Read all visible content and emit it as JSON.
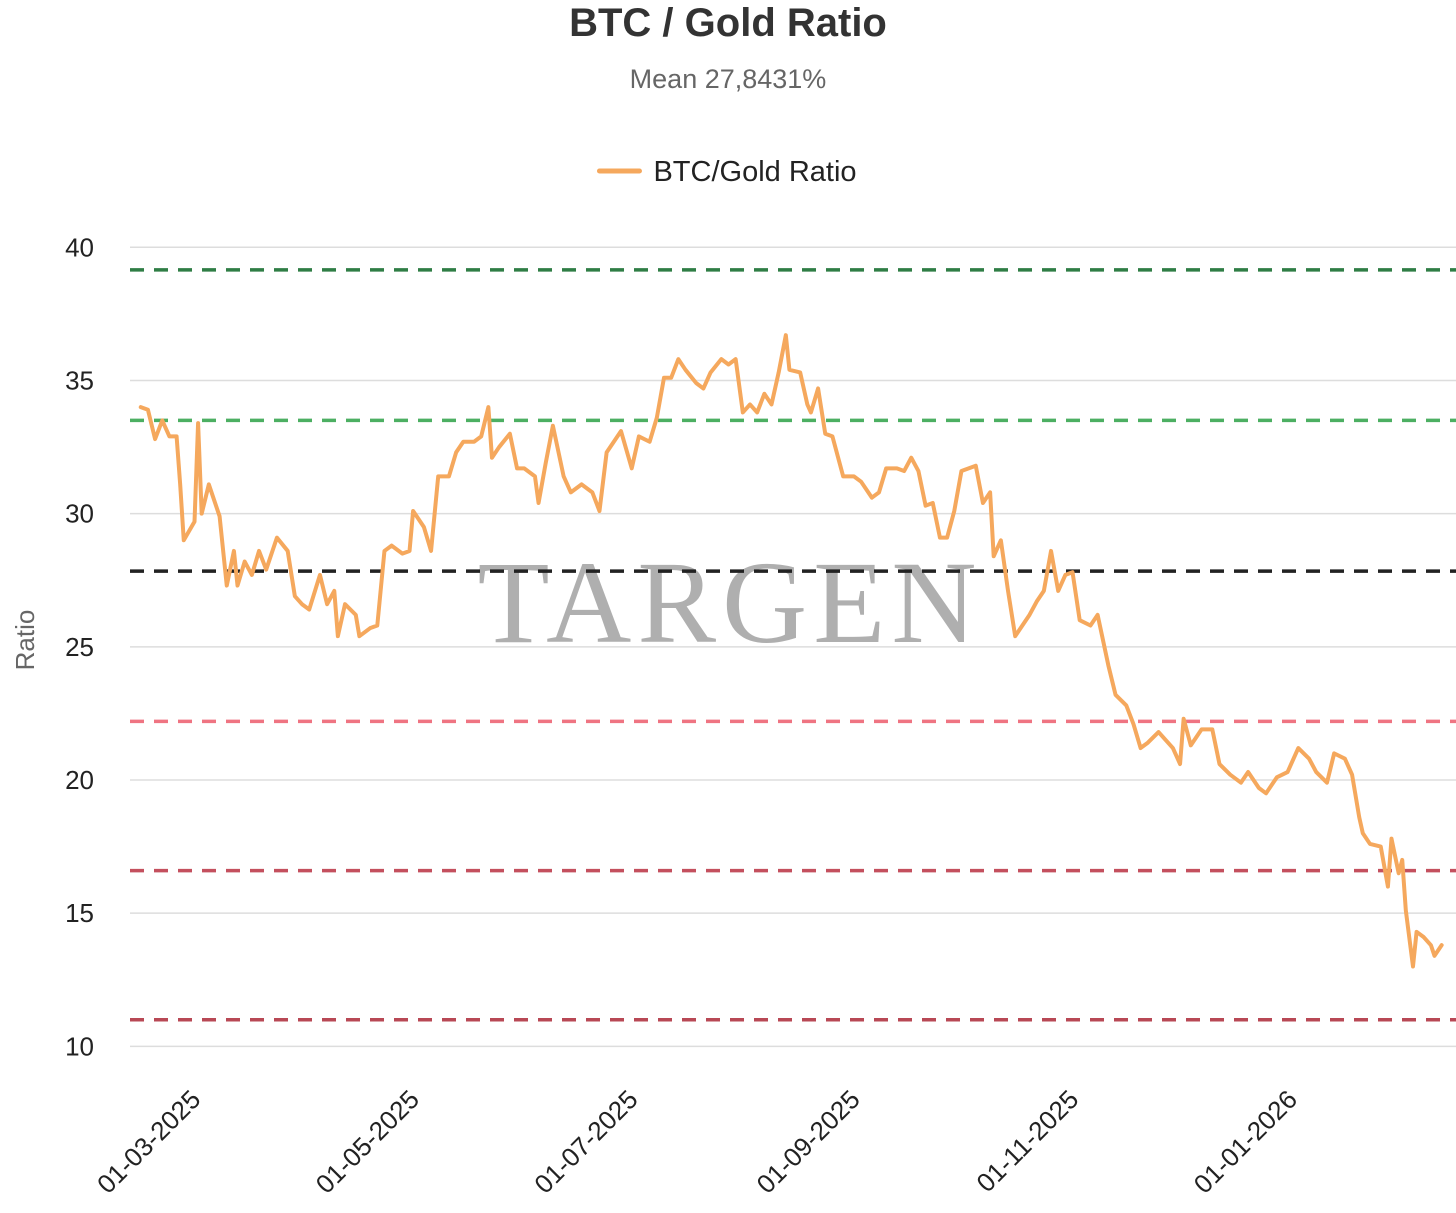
{
  "chart_data": {
    "type": "line",
    "title": "BTC / Gold Ratio",
    "subtitle": "Mean 27,8431%",
    "ylabel": "Ratio",
    "watermark": "TARGEN",
    "legend": "top",
    "grid": true,
    "xlim": [
      "2025-02-10",
      "2026-02-15"
    ],
    "xticks": [
      {
        "value": "2025-03-01",
        "label": "01-03-2025"
      },
      {
        "value": "2025-05-01",
        "label": "01-05-2025"
      },
      {
        "value": "2025-07-01",
        "label": "01-07-2025"
      },
      {
        "value": "2025-09-01",
        "label": "01-09-2025"
      },
      {
        "value": "2025-11-01",
        "label": "01-11-2025"
      },
      {
        "value": "2026-01-01",
        "label": "01-01-2026"
      }
    ],
    "ylim": [
      9,
      41.4
    ],
    "yticks": [
      10,
      15,
      20,
      25,
      30,
      35,
      40
    ],
    "reference_lines": [
      {
        "value": 39.15,
        "color": "#2f7d45"
      },
      {
        "value": 33.5,
        "color": "#4caf62"
      },
      {
        "value": 27.8431,
        "color": "#222222"
      },
      {
        "value": 22.2,
        "color": "#ef7482"
      },
      {
        "value": 16.6,
        "color": "#c4505e"
      },
      {
        "value": 11.0,
        "color": "#b84855"
      }
    ],
    "x": [
      "2025-02-13",
      "2025-02-15",
      "2025-02-17",
      "2025-02-19",
      "2025-02-21",
      "2025-02-23",
      "2025-02-24",
      "2025-02-25",
      "2025-02-28",
      "2025-03-01",
      "2025-03-02",
      "2025-03-04",
      "2025-03-07",
      "2025-03-09",
      "2025-03-11",
      "2025-03-12",
      "2025-03-14",
      "2025-03-16",
      "2025-03-18",
      "2025-03-20",
      "2025-03-23",
      "2025-03-26",
      "2025-03-28",
      "2025-03-30",
      "2025-04-01",
      "2025-04-04",
      "2025-04-06",
      "2025-04-08",
      "2025-04-09",
      "2025-04-11",
      "2025-04-14",
      "2025-04-15",
      "2025-04-18",
      "2025-04-20",
      "2025-04-22",
      "2025-04-24",
      "2025-04-27",
      "2025-04-29",
      "2025-04-30",
      "2025-05-03",
      "2025-05-05",
      "2025-05-07",
      "2025-05-10",
      "2025-05-12",
      "2025-05-14",
      "2025-05-17",
      "2025-05-19",
      "2025-05-21",
      "2025-05-22",
      "2025-05-24",
      "2025-05-27",
      "2025-05-29",
      "2025-05-31",
      "2025-06-03",
      "2025-06-04",
      "2025-06-06",
      "2025-06-08",
      "2025-06-11",
      "2025-06-13",
      "2025-06-16",
      "2025-06-19",
      "2025-06-21",
      "2025-06-23",
      "2025-06-25",
      "2025-06-27",
      "2025-06-30",
      "2025-07-02",
      "2025-07-05",
      "2025-07-07",
      "2025-07-09",
      "2025-07-11",
      "2025-07-13",
      "2025-07-15",
      "2025-07-18",
      "2025-07-20",
      "2025-07-22",
      "2025-07-25",
      "2025-07-27",
      "2025-07-29",
      "2025-07-31",
      "2025-08-02",
      "2025-08-04",
      "2025-08-06",
      "2025-08-08",
      "2025-08-10",
      "2025-08-12",
      "2025-08-13",
      "2025-08-16",
      "2025-08-18",
      "2025-08-19",
      "2025-08-21",
      "2025-08-23",
      "2025-08-25",
      "2025-08-28",
      "2025-08-31",
      "2025-09-02",
      "2025-09-05",
      "2025-09-07",
      "2025-09-09",
      "2025-09-12",
      "2025-09-14",
      "2025-09-16",
      "2025-09-18",
      "2025-09-20",
      "2025-09-22",
      "2025-09-24",
      "2025-09-26",
      "2025-09-28",
      "2025-09-30",
      "2025-10-02",
      "2025-10-04",
      "2025-10-06",
      "2025-10-08",
      "2025-10-09",
      "2025-10-11",
      "2025-10-13",
      "2025-10-15",
      "2025-10-17",
      "2025-10-19",
      "2025-10-21",
      "2025-10-23",
      "2025-10-25",
      "2025-10-27",
      "2025-10-29",
      "2025-10-31",
      "2025-11-02",
      "2025-11-05",
      "2025-11-07",
      "2025-11-10",
      "2025-11-12",
      "2025-11-15",
      "2025-11-17",
      "2025-11-19",
      "2025-11-21",
      "2025-11-24",
      "2025-11-26",
      "2025-11-28",
      "2025-11-30",
      "2025-12-01",
      "2025-12-03",
      "2025-12-06",
      "2025-12-09",
      "2025-12-11",
      "2025-12-14",
      "2025-12-17",
      "2025-12-19",
      "2025-12-22",
      "2025-12-24",
      "2025-12-27",
      "2025-12-30",
      "2026-01-02",
      "2026-01-05",
      "2026-01-07",
      "2026-01-10",
      "2026-01-12",
      "2026-01-15",
      "2026-01-17",
      "2026-01-19",
      "2026-01-20",
      "2026-01-22",
      "2026-01-25",
      "2026-01-27",
      "2026-01-28",
      "2026-01-30",
      "2026-01-31",
      "2026-02-01",
      "2026-02-03",
      "2026-02-04",
      "2026-02-06",
      "2026-02-08",
      "2026-02-09",
      "2026-02-11"
    ],
    "series": [
      {
        "name": "BTC/Gold Ratio",
        "color": "#f5a85d",
        "values": [
          34.0,
          33.9,
          32.8,
          33.5,
          32.9,
          32.9,
          31.1,
          29.0,
          29.7,
          33.4,
          30.0,
          31.1,
          29.9,
          27.3,
          28.6,
          27.3,
          28.2,
          27.7,
          28.6,
          27.9,
          29.1,
          28.6,
          26.9,
          26.6,
          26.4,
          27.7,
          26.6,
          27.1,
          25.4,
          26.6,
          26.2,
          25.4,
          25.7,
          25.8,
          28.6,
          28.8,
          28.5,
          28.6,
          30.1,
          29.5,
          28.6,
          31.4,
          31.4,
          32.3,
          32.7,
          32.7,
          32.9,
          34.0,
          32.1,
          32.5,
          33.0,
          31.7,
          31.7,
          31.4,
          30.4,
          31.9,
          33.3,
          31.4,
          30.8,
          31.1,
          30.8,
          30.1,
          32.3,
          32.7,
          33.1,
          31.7,
          32.9,
          32.7,
          33.6,
          35.1,
          35.1,
          35.8,
          35.4,
          34.9,
          34.7,
          35.3,
          35.8,
          35.6,
          35.8,
          33.8,
          34.1,
          33.8,
          34.5,
          34.1,
          35.3,
          36.7,
          35.4,
          35.3,
          34.1,
          33.8,
          34.7,
          33.0,
          32.9,
          31.4,
          31.4,
          31.2,
          30.6,
          30.8,
          31.7,
          31.7,
          31.6,
          32.1,
          31.6,
          30.3,
          30.4,
          29.1,
          29.1,
          30.1,
          31.6,
          31.7,
          31.8,
          30.4,
          30.8,
          28.4,
          29.0,
          27.1,
          25.4,
          25.8,
          26.2,
          26.7,
          27.1,
          28.6,
          27.1,
          27.7,
          27.8,
          26.0,
          25.8,
          26.2,
          24.3,
          23.2,
          22.8,
          22.1,
          21.2,
          21.4,
          21.8,
          21.5,
          21.2,
          20.6,
          22.3,
          21.3,
          21.9,
          21.9,
          20.6,
          20.2,
          19.9,
          20.3,
          19.7,
          19.5,
          20.1,
          20.3,
          21.2,
          20.8,
          20.3,
          19.9,
          21.0,
          20.8,
          20.2,
          18.6,
          18.0,
          17.6,
          17.5,
          16.0,
          17.8,
          16.5,
          17.0,
          15.1,
          13.0,
          14.3,
          14.1,
          13.8,
          13.4,
          13.8
        ]
      }
    ]
  }
}
